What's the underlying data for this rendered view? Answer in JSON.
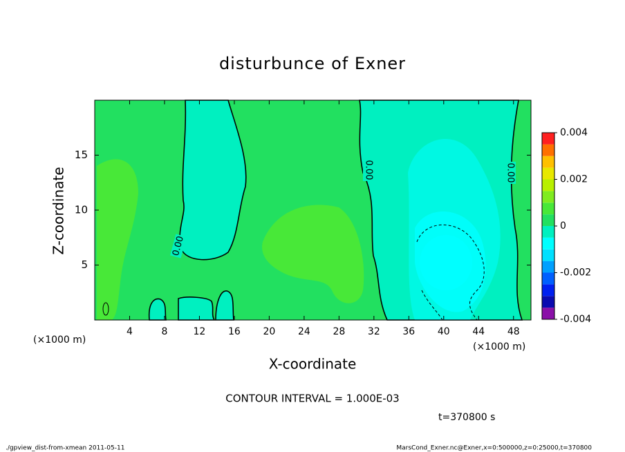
{
  "chart_data": {
    "type": "contour",
    "title": "disturbunce of Exner",
    "xlabel": "X-coordinate",
    "ylabel": "Z-coordinate",
    "x_unit": "(×1000 m)",
    "xlim": [
      0,
      50
    ],
    "xticks": [
      4,
      8,
      12,
      16,
      20,
      24,
      28,
      32,
      36,
      40,
      44,
      48
    ],
    "ylim": [
      0,
      20
    ],
    "yticks": [
      5,
      10,
      15
    ],
    "colorbar": {
      "levels": [
        -0.004,
        -0.0035,
        -0.003,
        -0.0025,
        -0.002,
        -0.0015,
        -0.001,
        -0.0005,
        0,
        0.0005,
        0.001,
        0.0015,
        0.002,
        0.0025,
        0.003,
        0.0035,
        0.004
      ],
      "colors": [
        "#8a10a8",
        "#0a0ab0",
        "#0020f0",
        "#0060ff",
        "#00a0ff",
        "#00e0ff",
        "#00ffff",
        "#00f0c0",
        "#22e060",
        "#48e838",
        "#80ec20",
        "#b8f000",
        "#e8e800",
        "#ffc000",
        "#ff7000",
        "#ff2020",
        "#ff9ca0"
      ],
      "ticks": [
        -0.004,
        -0.002,
        0,
        0.002,
        0.004
      ]
    },
    "contour_labels": [
      "0.00",
      "0.00",
      "0.00"
    ],
    "contour_interval": "CONTOUR INTERVAL = 1.000E-03",
    "time_label": "t=370800 s",
    "footer_left": "./gpview_dist-from-xmean  2011-05-11",
    "footer_right": "MarsCond_Exner.nc@Exner,x=0:500000,z=0:25000,t=370800"
  }
}
